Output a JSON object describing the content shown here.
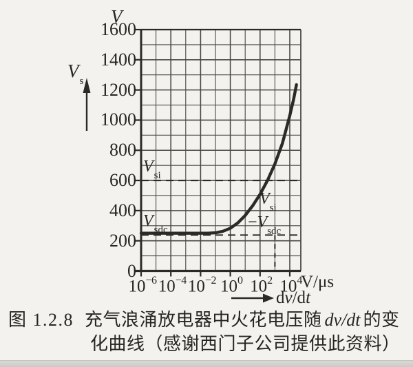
{
  "figure": {
    "y_axis_unit": "V",
    "y_axis_symbol": {
      "base": "V",
      "sub": "s"
    },
    "x_axis_unit": "V/μs",
    "x_axis_symbol": {
      "d1": "d",
      "v": "v",
      "d2": "/d",
      "t": "t"
    },
    "labels": {
      "vsi": {
        "base": "V",
        "sub": "si"
      },
      "vsdc": {
        "base": "V",
        "sub": "sdc"
      },
      "diff_line1": {
        "base": "V",
        "sub": "si"
      },
      "diff_line2": {
        "minus": "−",
        "base": "V",
        "sub": "sdc"
      }
    },
    "caption": {
      "line1_prefix": "图 1.2.8",
      "line1_text": "充气浪涌放电器中火花电压随",
      "line1_math": "dv/dt",
      "line1_suffix": "的变",
      "line2": "化曲线（感谢西门子公司提供此资料）"
    }
  },
  "chart_data": {
    "type": "line",
    "title": "图 1.2.8 充气浪涌放电器中火花电压随 dv/dt 的变化曲线（感谢西门子公司提供此资料）",
    "xlabel": "dv/dt (V/μs)",
    "ylabel": "Vs (V)",
    "x_scale": "log10",
    "x_range_exponents": [
      -6,
      4.75
    ],
    "ylim": [
      0,
      1600
    ],
    "grid": {
      "x_minor_every_decade": true,
      "y_minor_step": 100,
      "y_major_step": 200
    },
    "x_ticks": [
      {
        "base": "10",
        "exp": "−6",
        "value": -6
      },
      {
        "base": "10",
        "exp": "−4",
        "value": -4
      },
      {
        "base": "10",
        "exp": "−2",
        "value": -2
      },
      {
        "base": "10",
        "exp": "0",
        "value": 0
      },
      {
        "base": "10",
        "exp": "2",
        "value": 2
      },
      {
        "base": "10",
        "exp": "4",
        "value": 4
      }
    ],
    "y_ticks": [
      {
        "label": "1600",
        "value": 1600
      },
      {
        "label": "1400",
        "value": 1400
      },
      {
        "label": "1200",
        "value": 1200
      },
      {
        "label": "1000",
        "value": 1000
      },
      {
        "label": "800",
        "value": 800
      },
      {
        "label": "600",
        "value": 600
      },
      {
        "label": "400",
        "value": 400
      },
      {
        "label": "200",
        "value": 200
      },
      {
        "label": "0",
        "value": 0
      }
    ],
    "series": [
      {
        "name": "spark-voltage-vs-dvdt",
        "points_log10x_y": [
          [
            -6.0,
            250
          ],
          [
            -2.0,
            250
          ],
          [
            -1.5,
            250
          ],
          [
            -1.0,
            253
          ],
          [
            -0.5,
            263
          ],
          [
            0.0,
            283
          ],
          [
            0.5,
            318
          ],
          [
            1.0,
            368
          ],
          [
            1.5,
            432
          ],
          [
            2.0,
            508
          ],
          [
            2.5,
            600
          ],
          [
            3.0,
            710
          ],
          [
            3.5,
            845
          ],
          [
            4.0,
            1030
          ],
          [
            4.25,
            1135
          ],
          [
            4.45,
            1235
          ]
        ]
      }
    ],
    "reference_lines": {
      "v_si_horizontal": 600,
      "v_sdc_horizontal": 238,
      "vertical_dashed_at_exponent": 3
    },
    "colors": {
      "ink": "#2b2a27",
      "grid": "#4b4944",
      "paper": "#f3f2ef"
    }
  }
}
